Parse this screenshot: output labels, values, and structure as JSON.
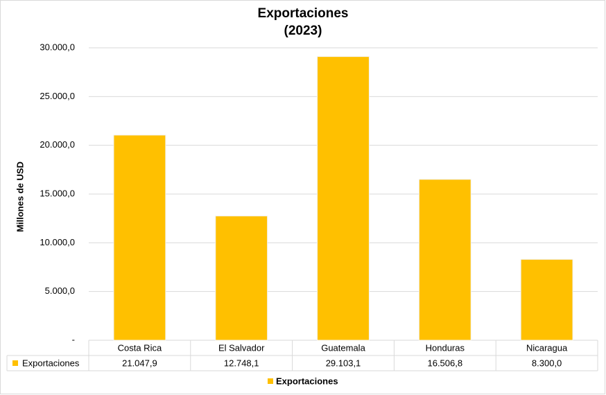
{
  "chart_data": {
    "type": "bar",
    "title": "Exportaciones",
    "subtitle": "(2023)",
    "y_label": "Millones de USD",
    "categories": [
      "Costa Rica",
      "El Salvador",
      "Guatemala",
      "Honduras",
      "Nicaragua"
    ],
    "series": [
      {
        "name": "Exportaciones",
        "color": "#ffc000",
        "values": [
          21047.9,
          12748.1,
          29103.1,
          16506.8,
          8300.0
        ],
        "value_labels": [
          "21.047,9",
          "12.748,1",
          "29.103,1",
          "16.506,8",
          "8.300,0"
        ]
      }
    ],
    "ylim": [
      0,
      30000
    ],
    "yticks": [
      {
        "value": 0,
        "label": "-"
      },
      {
        "value": 5000,
        "label": "5.000,0"
      },
      {
        "value": 10000,
        "label": "10.000,0"
      },
      {
        "value": 15000,
        "label": "15.000,0"
      },
      {
        "value": 20000,
        "label": "20.000,0"
      },
      {
        "value": 25000,
        "label": "25.000,0"
      },
      {
        "value": 30000,
        "label": "30.000,0"
      }
    ],
    "grid": true,
    "legend": "bottom",
    "data_table": true
  }
}
